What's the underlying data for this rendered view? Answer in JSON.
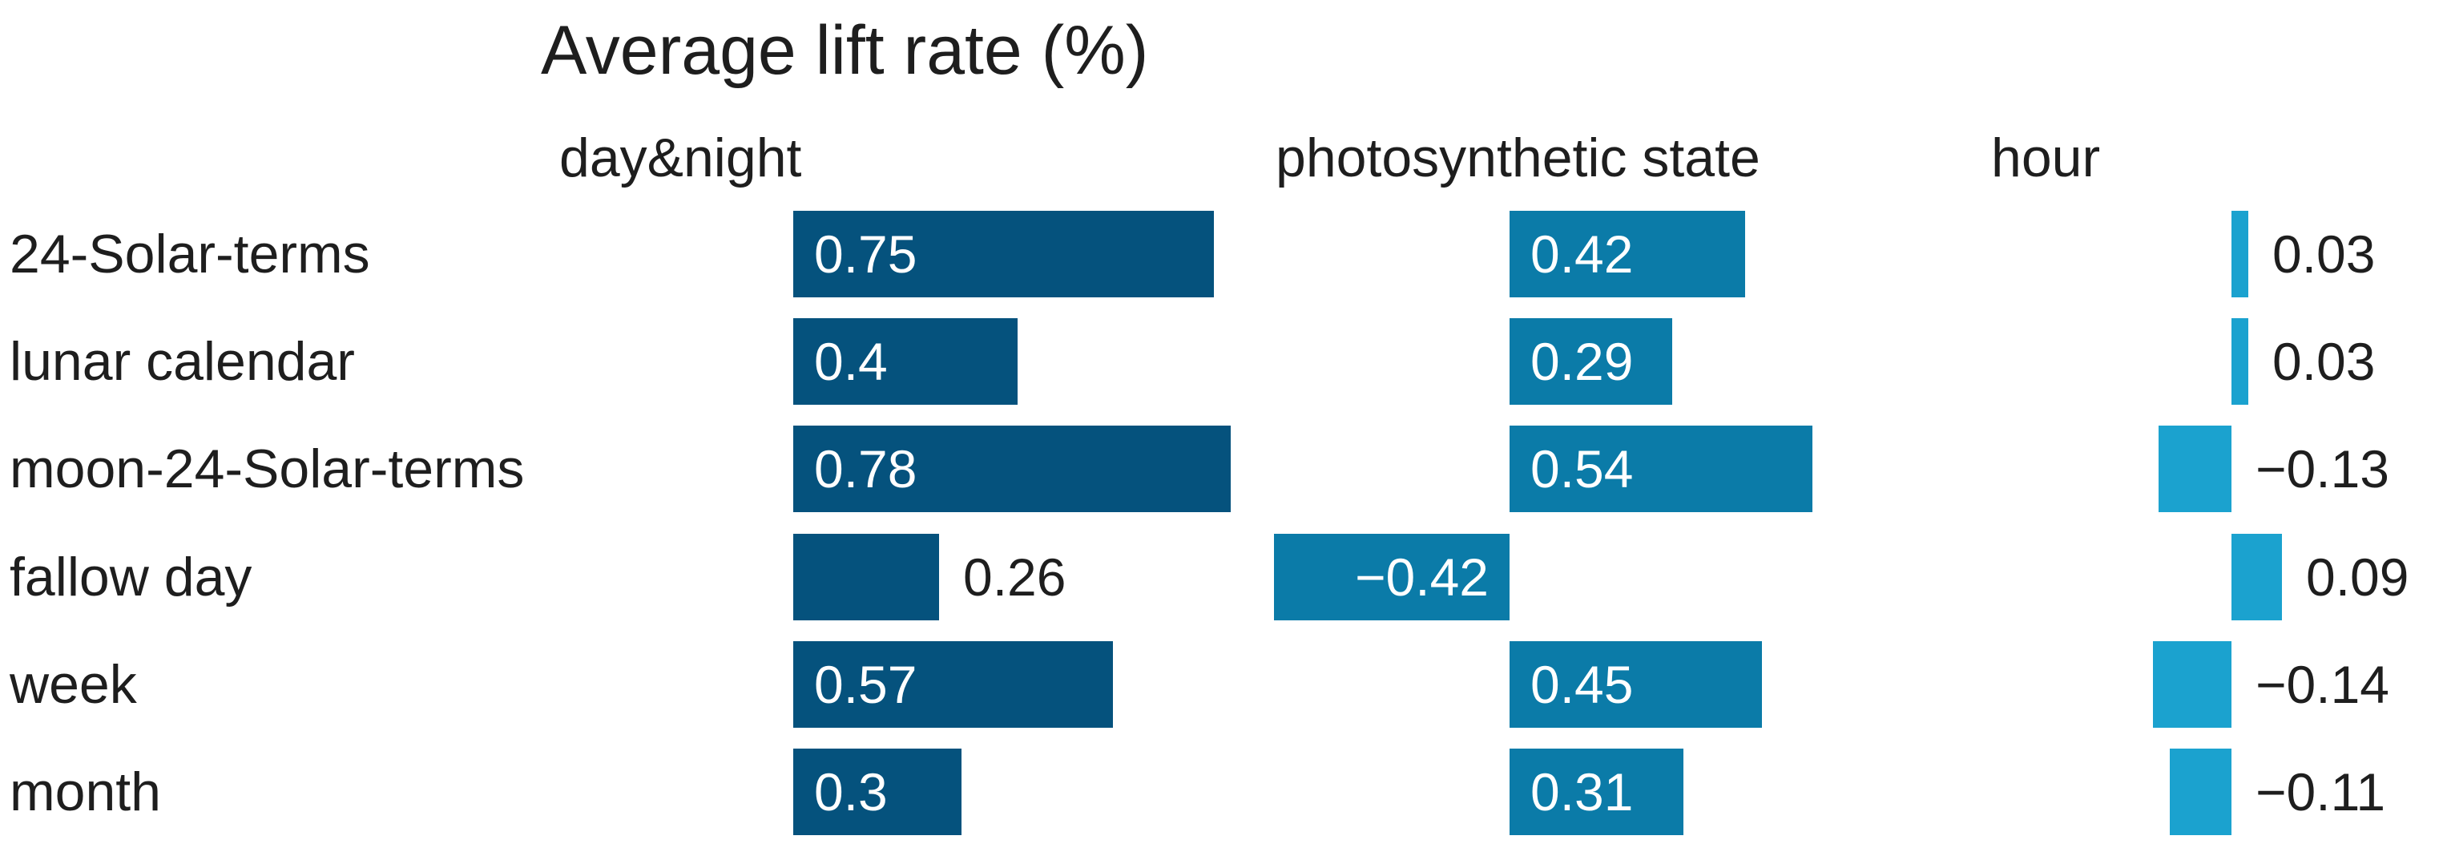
{
  "chart_data": {
    "type": "bar",
    "orientation": "horizontal",
    "title": "Average lift rate (%)",
    "categories": [
      "24-Solar-terms",
      "lunar calendar",
      "moon-24-Solar-terms",
      "fallow day",
      "week",
      "month"
    ],
    "series": [
      {
        "name": "day&night",
        "color": "#05527d",
        "values": [
          0.75,
          0.4,
          0.78,
          0.26,
          0.57,
          0.3
        ],
        "labels": [
          "0.75",
          "0.4",
          "0.78",
          "0.26",
          "0.57",
          "0.3"
        ]
      },
      {
        "name": "photosynthetic state",
        "color": "#0b7ba8",
        "values": [
          0.42,
          0.29,
          0.54,
          -0.42,
          0.45,
          0.31
        ],
        "labels": [
          "0.42",
          "0.29",
          "0.54",
          "−0.42",
          "0.45",
          "0.31"
        ]
      },
      {
        "name": "hour",
        "color": "#1ba2cf",
        "values": [
          0.03,
          0.03,
          -0.13,
          0.09,
          -0.14,
          -0.11
        ],
        "labels": [
          "0.03",
          "0.03",
          "−0.13",
          "0.09",
          "−0.14",
          "−0.11"
        ]
      }
    ],
    "value_label_color_inside": "#ffffff",
    "value_label_color_outside": "#1e1e1e",
    "axis": {
      "gridlines": "off",
      "value_axis_labels": "none",
      "legend": "column headers above each group"
    }
  }
}
